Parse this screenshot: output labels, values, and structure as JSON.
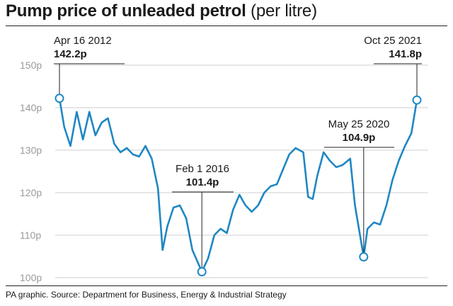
{
  "header": {
    "title_bold": "Pump price of unleaded petrol",
    "title_light": "(per litre)"
  },
  "footer": {
    "source": "PA graphic. Source: Department for Business, Energy & Industrial Strategy"
  },
  "colors": {
    "line": "#1f87c3",
    "marker_fill": "#ffffff",
    "grid": "#cfcfcf",
    "tick_text": "#9a9a9a",
    "text": "#1a1a1a"
  },
  "chart_data": {
    "type": "line",
    "title": "Pump price of unleaded petrol (per litre)",
    "xlabel": "",
    "ylabel": "",
    "ylim": [
      97,
      150
    ],
    "yticks": [
      100,
      110,
      120,
      130,
      140,
      150
    ],
    "ytick_labels": [
      "100p",
      "110p",
      "120p",
      "130p",
      "140p",
      "150p"
    ],
    "grid": true,
    "legend": "none",
    "series": [
      {
        "x": [
          "2012-04-16",
          "2012-06-01",
          "2012-08-01",
          "2012-10-01",
          "2012-12-01",
          "2013-02-01",
          "2013-04-01",
          "2013-06-01",
          "2013-08-01",
          "2013-10-01",
          "2013-12-01",
          "2014-02-01",
          "2014-04-01",
          "2014-06-01",
          "2014-08-01",
          "2014-10-01",
          "2014-12-01",
          "2015-01-15",
          "2015-03-01",
          "2015-05-01",
          "2015-07-01",
          "2015-09-01",
          "2015-11-01",
          "2016-02-01",
          "2016-04-01",
          "2016-06-01",
          "2016-08-01",
          "2016-10-01",
          "2016-12-01",
          "2017-02-01",
          "2017-04-01",
          "2017-06-01",
          "2017-08-01",
          "2017-10-01",
          "2017-12-01",
          "2018-02-01",
          "2018-04-01",
          "2018-06-01",
          "2018-08-01",
          "2018-10-15",
          "2018-12-01",
          "2019-01-15",
          "2019-03-01",
          "2019-05-01",
          "2019-07-01",
          "2019-09-01",
          "2019-11-01",
          "2020-01-15",
          "2020-03-01",
          "2020-05-25",
          "2020-07-01",
          "2020-09-01",
          "2020-11-01",
          "2021-01-01",
          "2021-03-01",
          "2021-05-01",
          "2021-07-01",
          "2021-09-01",
          "2021-10-25"
        ],
        "values": [
          142.2,
          135.5,
          131,
          139,
          132.5,
          139,
          133.5,
          136.5,
          137.5,
          131.5,
          129.5,
          130.5,
          129,
          128.5,
          131,
          128,
          121,
          106.5,
          112,
          116.5,
          117,
          114,
          106.5,
          101.4,
          104.5,
          110,
          111.5,
          110.5,
          116,
          119.5,
          117,
          115.5,
          117,
          120,
          121.5,
          122,
          125.5,
          129,
          130.5,
          129.5,
          119,
          118.5,
          124,
          129.5,
          127.5,
          126,
          126.5,
          128,
          117,
          104.9,
          111.5,
          113,
          112.5,
          117,
          123,
          127.5,
          131,
          134,
          141.8
        ]
      }
    ],
    "annotations": [
      {
        "date": "Apr 16 2012",
        "value": "142.2p",
        "x": "2012-04-16",
        "y": 142.2
      },
      {
        "date": "Feb 1 2016",
        "value": "101.4p",
        "x": "2016-02-01",
        "y": 101.4
      },
      {
        "date": "May 25 2020",
        "value": "104.9p",
        "x": "2020-05-25",
        "y": 104.9
      },
      {
        "date": "Oct 25 2021",
        "value": "141.8p",
        "x": "2021-10-25",
        "y": 141.8
      }
    ]
  }
}
